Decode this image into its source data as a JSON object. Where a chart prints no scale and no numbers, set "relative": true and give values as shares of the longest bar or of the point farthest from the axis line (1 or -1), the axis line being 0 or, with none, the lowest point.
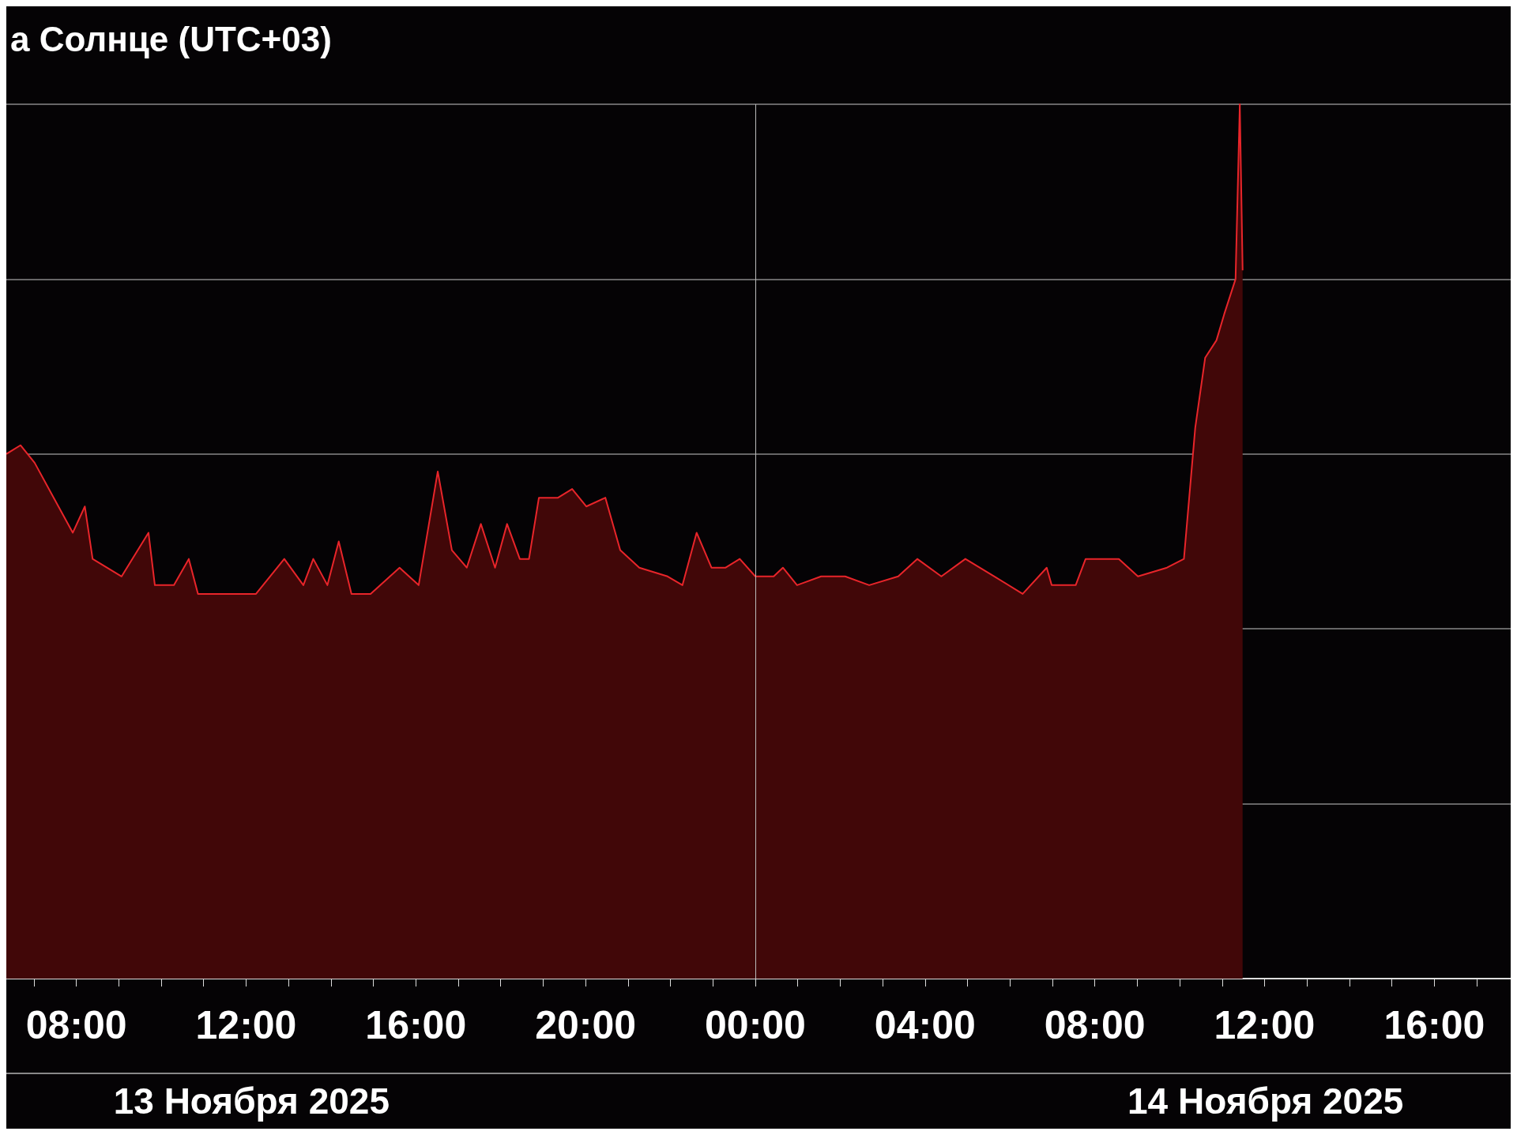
{
  "chart_data": {
    "type": "area",
    "title": "а Солнце (UTC+03)",
    "relative": true,
    "grid": "y",
    "marker": "none",
    "line_style": "solid",
    "xlim": [
      "2025-11-13T06:21",
      "2025-11-14T17:48"
    ],
    "xticks": [
      {
        "value": "2025-11-13T07:00",
        "label": null
      },
      {
        "value": "2025-11-13T08:00",
        "label": "08:00"
      },
      {
        "value": "2025-11-13T09:00",
        "label": null
      },
      {
        "value": "2025-11-13T10:00",
        "label": null
      },
      {
        "value": "2025-11-13T11:00",
        "label": null
      },
      {
        "value": "2025-11-13T12:00",
        "label": "12:00"
      },
      {
        "value": "2025-11-13T13:00",
        "label": null
      },
      {
        "value": "2025-11-13T14:00",
        "label": null
      },
      {
        "value": "2025-11-13T15:00",
        "label": null
      },
      {
        "value": "2025-11-13T16:00",
        "label": "16:00"
      },
      {
        "value": "2025-11-13T17:00",
        "label": null
      },
      {
        "value": "2025-11-13T18:00",
        "label": null
      },
      {
        "value": "2025-11-13T19:00",
        "label": null
      },
      {
        "value": "2025-11-13T20:00",
        "label": "20:00"
      },
      {
        "value": "2025-11-13T21:00",
        "label": null
      },
      {
        "value": "2025-11-13T22:00",
        "label": null
      },
      {
        "value": "2025-11-13T23:00",
        "label": null
      },
      {
        "value": "2025-11-14T00:00",
        "label": "00:00"
      },
      {
        "value": "2025-11-14T01:00",
        "label": null
      },
      {
        "value": "2025-11-14T02:00",
        "label": null
      },
      {
        "value": "2025-11-14T03:00",
        "label": null
      },
      {
        "value": "2025-11-14T04:00",
        "label": "04:00"
      },
      {
        "value": "2025-11-14T05:00",
        "label": null
      },
      {
        "value": "2025-11-14T06:00",
        "label": null
      },
      {
        "value": "2025-11-14T07:00",
        "label": null
      },
      {
        "value": "2025-11-14T08:00",
        "label": "08:00"
      },
      {
        "value": "2025-11-14T09:00",
        "label": null
      },
      {
        "value": "2025-11-14T10:00",
        "label": null
      },
      {
        "value": "2025-11-14T11:00",
        "label": null
      },
      {
        "value": "2025-11-14T12:00",
        "label": "12:00"
      },
      {
        "value": "2025-11-14T13:00",
        "label": null
      },
      {
        "value": "2025-11-14T14:00",
        "label": null
      },
      {
        "value": "2025-11-14T15:00",
        "label": null
      },
      {
        "value": "2025-11-14T16:00",
        "label": "16:00"
      },
      {
        "value": "2025-11-14T17:00",
        "label": null
      }
    ],
    "ref_lines": [
      {
        "axis": "x",
        "value": "2025-11-14T00:00",
        "label": null,
        "color": "#bbbbbb"
      }
    ],
    "annotations": [
      "13 Ноября 2025",
      "14 Ноября 2025"
    ],
    "series": [
      {
        "color": "#e8252a",
        "x": [
          "2025-11-13T06:21",
          "2025-11-13T06:41",
          "2025-11-13T07:01",
          "2025-11-13T07:28",
          "2025-11-13T07:55",
          "2025-11-13T08:12",
          "2025-11-13T08:23",
          "2025-11-13T09:04",
          "2025-11-13T09:42",
          "2025-11-13T09:51",
          "2025-11-13T10:18",
          "2025-11-13T10:39",
          "2025-11-13T10:52",
          "2025-11-13T11:33",
          "2025-11-13T12:14",
          "2025-11-13T12:54",
          "2025-11-13T13:21",
          "2025-11-13T13:35",
          "2025-11-13T13:55",
          "2025-11-13T14:11",
          "2025-11-13T14:29",
          "2025-11-13T14:56",
          "2025-11-13T15:37",
          "2025-11-13T16:04",
          "2025-11-13T16:31",
          "2025-11-13T16:51",
          "2025-11-13T17:12",
          "2025-11-13T17:32",
          "2025-11-13T17:52",
          "2025-11-13T18:09",
          "2025-11-13T18:27",
          "2025-11-13T18:40",
          "2025-11-13T18:54",
          "2025-11-13T19:21",
          "2025-11-13T19:41",
          "2025-11-13T20:01",
          "2025-11-13T20:28",
          "2025-11-13T20:49",
          "2025-11-13T21:16",
          "2025-11-13T21:56",
          "2025-11-13T22:17",
          "2025-11-13T22:37",
          "2025-11-13T22:58",
          "2025-11-13T23:18",
          "2025-11-13T23:38",
          "2025-11-14T00:00",
          "2025-11-14T00:26",
          "2025-11-14T00:39",
          "2025-11-14T00:59",
          "2025-11-14T01:33",
          "2025-11-14T02:07",
          "2025-11-14T02:41",
          "2025-11-14T03:22",
          "2025-11-14T03:49",
          "2025-11-14T04:23",
          "2025-11-14T04:57",
          "2025-11-14T05:38",
          "2025-11-14T06:18",
          "2025-11-14T06:52",
          "2025-11-14T06:59",
          "2025-11-14T07:33",
          "2025-11-14T07:47",
          "2025-11-14T08:34",
          "2025-11-14T09:01",
          "2025-11-14T09:42",
          "2025-11-14T10:06",
          "2025-11-14T10:22",
          "2025-11-14T10:36",
          "2025-11-14T10:52",
          "2025-11-14T11:03",
          "2025-11-14T11:19",
          "2025-11-14T11:25",
          "2025-11-14T11:29"
        ],
        "values": [
          0.6,
          0.61,
          0.59,
          0.55,
          0.51,
          0.54,
          0.48,
          0.46,
          0.51,
          0.45,
          0.45,
          0.48,
          0.44,
          0.44,
          0.44,
          0.48,
          0.45,
          0.48,
          0.45,
          0.5,
          0.44,
          0.44,
          0.47,
          0.45,
          0.58,
          0.49,
          0.47,
          0.52,
          0.47,
          0.52,
          0.48,
          0.48,
          0.55,
          0.55,
          0.56,
          0.54,
          0.55,
          0.49,
          0.47,
          0.46,
          0.45,
          0.51,
          0.47,
          0.47,
          0.48,
          0.46,
          0.46,
          0.47,
          0.45,
          0.46,
          0.46,
          0.45,
          0.46,
          0.48,
          0.46,
          0.48,
          0.46,
          0.44,
          0.47,
          0.45,
          0.45,
          0.48,
          0.48,
          0.46,
          0.47,
          0.48,
          0.63,
          0.71,
          0.73,
          0.76,
          0.8,
          1,
          0.81
        ]
      }
    ]
  }
}
